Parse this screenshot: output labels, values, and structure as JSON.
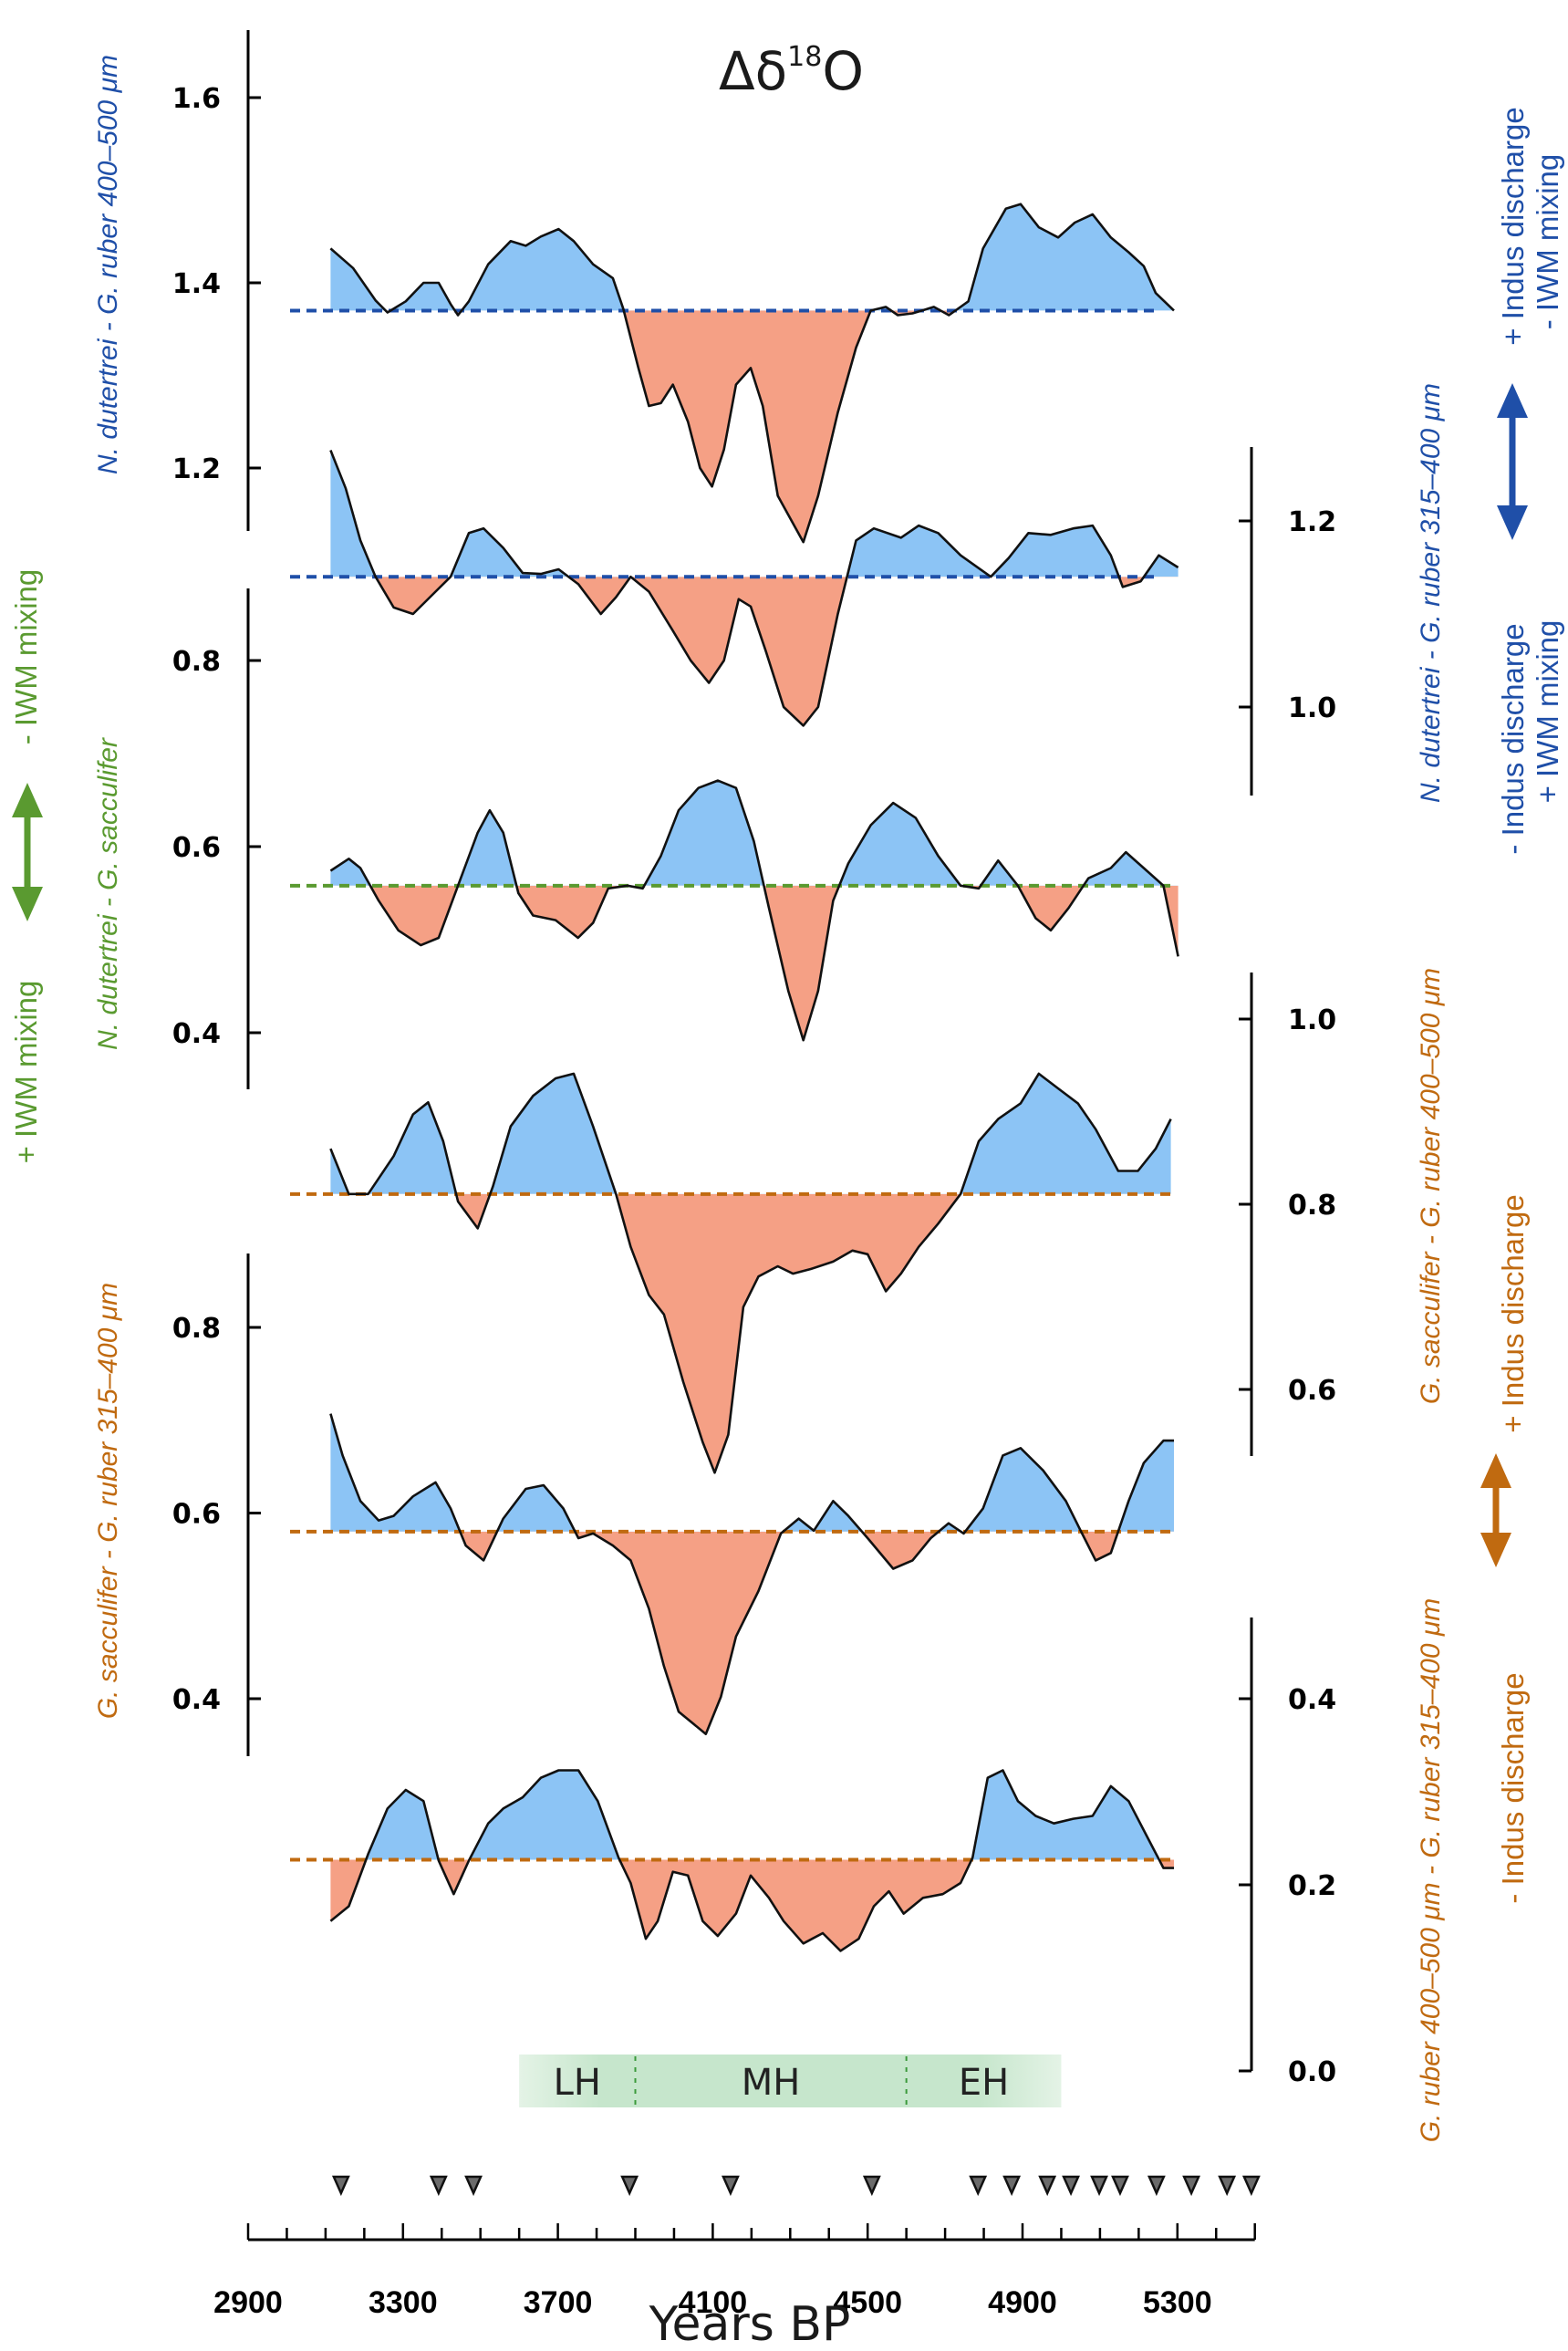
{
  "chart_data": {
    "type": "area",
    "title": "Δδ18O",
    "title_base": "Δδ",
    "title_sup": "18",
    "title_end": "O",
    "xlabel": "Years BP",
    "xlim": [
      2900,
      5500
    ],
    "x_ticks_major": [
      2900,
      3300,
      3700,
      4100,
      4500,
      4900,
      5300
    ],
    "x_tick_labels": [
      "2900",
      "3300",
      "3700",
      "4100",
      "4500",
      "4900",
      "5300"
    ],
    "x_minor_step": 100,
    "fill_above_color": "#8cc4f5",
    "fill_below_color": "#f5a085",
    "line_color": "#111111",
    "grid": false,
    "age_control_points": [
      3140,
      3392,
      3482,
      3885,
      4146,
      4511,
      4785,
      4872,
      4964,
      5025,
      5098,
      5152,
      5246,
      5336,
      5428,
      5491
    ],
    "periods": {
      "range": [
        3600,
        5000
      ],
      "color": "#c6e6cc",
      "boundaries": [
        3900,
        4600
      ],
      "boundary_color": "#3a9a3a",
      "items": [
        {
          "label": "LH",
          "center": 3750
        },
        {
          "label": "MH",
          "center": 4250
        },
        {
          "label": "EH",
          "center": 4800
        }
      ]
    },
    "series": [
      {
        "name": "N. dutertrei - G. ruber 400–500 μm",
        "axis_side": "left",
        "axis_ticks": [
          1.2,
          1.4,
          1.6
        ],
        "axis_tick_labels": [
          "1.2",
          "1.4",
          "1.6"
        ],
        "axis_range": [
          1.115,
          1.65
        ],
        "baseline": 1.37,
        "baseline_color": "#1f4fa8",
        "label_color": "#1f4fa8",
        "x": [
          3113,
          3171,
          3229,
          3260,
          3307,
          3353,
          3392,
          3423,
          3442,
          3470,
          3520,
          3578,
          3617,
          3656,
          3702,
          3741,
          3791,
          3842,
          3869,
          3908,
          3935,
          3966,
          3997,
          4036,
          4067,
          4098,
          4129,
          4160,
          4198,
          4229,
          4268,
          4334,
          4372,
          4423,
          4470,
          4508,
          4547,
          4578,
          4616,
          4671,
          4710,
          4760,
          4798,
          4857,
          4895,
          4942,
          4992,
          5035,
          5081,
          5128,
          5174,
          5213,
          5244,
          5291
        ],
        "y": [
          1.437,
          1.416,
          1.381,
          1.368,
          1.38,
          1.4,
          1.4,
          1.377,
          1.365,
          1.38,
          1.42,
          1.445,
          1.44,
          1.45,
          1.458,
          1.445,
          1.42,
          1.405,
          1.372,
          1.308,
          1.267,
          1.27,
          1.29,
          1.25,
          1.2,
          1.18,
          1.22,
          1.29,
          1.308,
          1.267,
          1.17,
          1.12,
          1.17,
          1.26,
          1.33,
          1.37,
          1.374,
          1.365,
          1.367,
          1.374,
          1.365,
          1.38,
          1.437,
          1.48,
          1.485,
          1.46,
          1.449,
          1.465,
          1.474,
          1.449,
          1.433,
          1.418,
          1.389,
          1.37
        ]
      },
      {
        "name": "N. dutertrei - G. ruber 315–400 μm",
        "axis_side": "right",
        "axis_ticks": [
          1.0,
          1.2
        ],
        "axis_tick_labels": [
          "1.0",
          "1.2"
        ],
        "axis_range": [
          0.905,
          1.28
        ],
        "baseline": 1.14,
        "baseline_color": "#1f4fa8",
        "label_color": "#1f4fa8",
        "x": [
          3113,
          3152,
          3190,
          3229,
          3276,
          3326,
          3384,
          3423,
          3470,
          3508,
          3559,
          3609,
          3656,
          3702,
          3753,
          3811,
          3850,
          3888,
          3935,
          3997,
          4043,
          4090,
          4129,
          4167,
          4198,
          4237,
          4283,
          4334,
          4372,
          4423,
          4470,
          4516,
          4586,
          4632,
          4682,
          4740,
          4818,
          4864,
          4915,
          4973,
          5031,
          5081,
          5128,
          5159,
          5205,
          5252,
          5302
        ],
        "y": [
          1.276,
          1.235,
          1.179,
          1.14,
          1.107,
          1.1,
          1.124,
          1.14,
          1.187,
          1.192,
          1.171,
          1.144,
          1.143,
          1.148,
          1.132,
          1.1,
          1.118,
          1.14,
          1.124,
          1.082,
          1.05,
          1.026,
          1.05,
          1.116,
          1.108,
          1.06,
          1.0,
          0.98,
          1.0,
          1.1,
          1.179,
          1.192,
          1.182,
          1.195,
          1.187,
          1.163,
          1.14,
          1.16,
          1.187,
          1.185,
          1.192,
          1.195,
          1.163,
          1.129,
          1.135,
          1.163,
          1.15
        ]
      },
      {
        "name": "N. dutertrei - G. sacculifer",
        "axis_side": "left",
        "axis_ticks": [
          0.4,
          0.6,
          0.8
        ],
        "axis_tick_labels": [
          "0.4",
          "0.6",
          "0.8"
        ],
        "axis_range": [
          0.33,
          0.88
        ],
        "baseline": 0.558,
        "baseline_color": "#5a9a30",
        "label_color": "#5a9a30",
        "x": [
          3113,
          3160,
          3190,
          3237,
          3288,
          3346,
          3392,
          3442,
          3493,
          3524,
          3559,
          3598,
          3636,
          3694,
          3752,
          3791,
          3830,
          3880,
          3919,
          3966,
          4012,
          4063,
          4113,
          4160,
          4206,
          4245,
          4295,
          4334,
          4372,
          4411,
          4450,
          4508,
          4566,
          4624,
          4682,
          4740,
          4787,
          4837,
          4888,
          4934,
          4973,
          5019,
          5070,
          5128,
          5167,
          5213,
          5264,
          5302
        ],
        "y": [
          0.574,
          0.587,
          0.577,
          0.542,
          0.51,
          0.494,
          0.502,
          0.558,
          0.615,
          0.639,
          0.615,
          0.55,
          0.526,
          0.521,
          0.502,
          0.518,
          0.555,
          0.558,
          0.555,
          0.59,
          0.639,
          0.663,
          0.671,
          0.663,
          0.606,
          0.534,
          0.445,
          0.392,
          0.445,
          0.542,
          0.582,
          0.623,
          0.647,
          0.631,
          0.59,
          0.558,
          0.555,
          0.585,
          0.558,
          0.523,
          0.51,
          0.534,
          0.566,
          0.577,
          0.594,
          0.577,
          0.558,
          0.482
        ]
      },
      {
        "name": "G. sacculifer - G. ruber 400–500 μm",
        "axis_side": "right",
        "axis_ticks": [
          0.6,
          0.8,
          1.0
        ],
        "axis_tick_labels": [
          "0.6",
          "0.8",
          "1.0"
        ],
        "axis_range": [
          0.53,
          1.05
        ],
        "baseline": 0.811,
        "baseline_color": "#c06a10",
        "label_color": "#c06a10",
        "x": [
          3113,
          3160,
          3210,
          3276,
          3326,
          3365,
          3404,
          3442,
          3493,
          3532,
          3578,
          3636,
          3694,
          3741,
          3791,
          3850,
          3888,
          3935,
          3974,
          4024,
          4074,
          4105,
          4140,
          4179,
          4218,
          4268,
          4307,
          4353,
          4411,
          4461,
          4500,
          4547,
          4586,
          4632,
          4682,
          4740,
          4787,
          4837,
          4895,
          4942,
          4992,
          5043,
          5089,
          5147,
          5198,
          5244,
          5283
        ],
        "y": [
          0.86,
          0.811,
          0.811,
          0.852,
          0.897,
          0.91,
          0.868,
          0.803,
          0.774,
          0.819,
          0.884,
          0.917,
          0.936,
          0.941,
          0.884,
          0.811,
          0.754,
          0.702,
          0.681,
          0.608,
          0.543,
          0.51,
          0.551,
          0.689,
          0.722,
          0.733,
          0.725,
          0.73,
          0.738,
          0.75,
          0.746,
          0.706,
          0.725,
          0.754,
          0.779,
          0.811,
          0.868,
          0.892,
          0.909,
          0.941,
          0.925,
          0.909,
          0.881,
          0.836,
          0.836,
          0.86,
          0.892
        ]
      },
      {
        "name": "G. sacculifer - G. ruber 315–400 μm",
        "axis_side": "left",
        "axis_ticks": [
          0.4,
          0.6,
          0.8
        ],
        "axis_tick_labels": [
          "0.4",
          "0.6",
          "0.8"
        ],
        "axis_range": [
          0.33,
          0.88
        ],
        "baseline": 0.58,
        "baseline_color": "#c06a10",
        "label_color": "#c06a10",
        "x": [
          3113,
          3144,
          3190,
          3237,
          3276,
          3326,
          3384,
          3423,
          3462,
          3508,
          3559,
          3617,
          3663,
          3714,
          3753,
          3791,
          3842,
          3888,
          3935,
          3974,
          4012,
          4082,
          4121,
          4160,
          4218,
          4276,
          4322,
          4361,
          4411,
          4450,
          4500,
          4566,
          4616,
          4663,
          4709,
          4748,
          4798,
          4849,
          4895,
          4953,
          5012,
          5050,
          5089,
          5128,
          5174,
          5213,
          5264,
          5291
        ],
        "y": [
          0.707,
          0.662,
          0.613,
          0.592,
          0.597,
          0.618,
          0.633,
          0.605,
          0.565,
          0.549,
          0.594,
          0.626,
          0.63,
          0.605,
          0.573,
          0.578,
          0.565,
          0.549,
          0.497,
          0.435,
          0.386,
          0.362,
          0.402,
          0.467,
          0.516,
          0.578,
          0.594,
          0.581,
          0.613,
          0.597,
          0.573,
          0.54,
          0.549,
          0.573,
          0.589,
          0.578,
          0.605,
          0.662,
          0.67,
          0.646,
          0.613,
          0.581,
          0.549,
          0.557,
          0.613,
          0.654,
          0.678,
          0.678
        ]
      },
      {
        "name": "G. ruber 400–500 μm - G. ruber 315–400 μm",
        "axis_side": "right",
        "axis_ticks": [
          0.0,
          0.2,
          0.4
        ],
        "axis_tick_labels": [
          "0.0",
          "0.2",
          "0.4"
        ],
        "axis_range": [
          0.0,
          0.49
        ],
        "baseline": 0.227,
        "baseline_color": "#c06a10",
        "label_color": "#c06a10",
        "x": [
          3113,
          3160,
          3210,
          3260,
          3307,
          3353,
          3392,
          3431,
          3470,
          3520,
          3559,
          3609,
          3656,
          3702,
          3753,
          3803,
          3857,
          3888,
          3927,
          3958,
          3997,
          4036,
          4074,
          4113,
          4160,
          4198,
          4245,
          4283,
          4334,
          4384,
          4430,
          4477,
          4516,
          4555,
          4593,
          4643,
          4694,
          4740,
          4771,
          4810,
          4849,
          4888,
          4934,
          4981,
          5031,
          5081,
          5128,
          5174,
          5224,
          5264,
          5291
        ],
        "y": [
          0.161,
          0.177,
          0.233,
          0.282,
          0.302,
          0.29,
          0.226,
          0.19,
          0.226,
          0.266,
          0.282,
          0.294,
          0.315,
          0.323,
          0.323,
          0.29,
          0.229,
          0.202,
          0.142,
          0.161,
          0.214,
          0.21,
          0.161,
          0.145,
          0.169,
          0.21,
          0.186,
          0.161,
          0.137,
          0.148,
          0.129,
          0.142,
          0.177,
          0.193,
          0.169,
          0.186,
          0.19,
          0.202,
          0.229,
          0.315,
          0.323,
          0.29,
          0.274,
          0.266,
          0.271,
          0.274,
          0.306,
          0.29,
          0.25,
          0.218,
          0.218
        ]
      }
    ],
    "interpretation": {
      "blue_upper": {
        "line1": "+ Indus discharge",
        "line2": "- IWM mixing"
      },
      "blue_lower": {
        "line1": "- Indus discharge",
        "line2": "+ IWM mixing"
      },
      "green_upper": "- IWM mixing",
      "green_lower": "+ IWM mixing",
      "orange_upper": "+ Indus discharge",
      "orange_lower": "- Indus discharge"
    }
  }
}
